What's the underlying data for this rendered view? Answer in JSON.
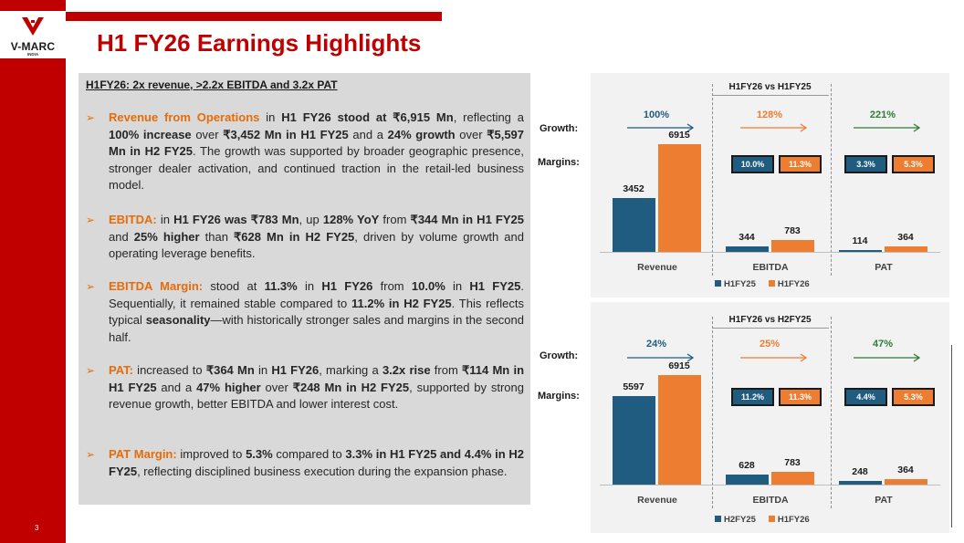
{
  "logo": {
    "name": "V-MARC",
    "sub": "INDIA"
  },
  "page_number": "3",
  "title": "H1 FY26 Earnings Highlights",
  "panel_heading": "H1FY26:  2x revenue, >2.2x EBITDA and 3.2x PAT",
  "bullets": [
    {
      "parts": [
        {
          "t": "Revenue from Operations",
          "s": "o"
        },
        {
          "t": " in ",
          "s": "n"
        },
        {
          "t": "H1 FY26 stood at ₹6,915 Mn",
          "s": "b"
        },
        {
          "t": ", reflecting a ",
          "s": "n"
        },
        {
          "t": "100% increase",
          "s": "b"
        },
        {
          "t": " over ",
          "s": "n"
        },
        {
          "t": "₹3,452 Mn in H1 FY25",
          "s": "b"
        },
        {
          "t": " and a ",
          "s": "n"
        },
        {
          "t": "24% growth",
          "s": "b"
        },
        {
          "t": " over ",
          "s": "n"
        },
        {
          "t": "₹5,597 Mn in H2 FY25",
          "s": "b"
        },
        {
          "t": ". The growth was supported by broader geographic presence, stronger dealer activation, and continued traction in the retail-led business model.",
          "s": "n"
        }
      ]
    },
    {
      "parts": [
        {
          "t": "EBITDA:",
          "s": "o"
        },
        {
          "t": " in ",
          "s": "n"
        },
        {
          "t": "H1 FY26 was ₹783 Mn",
          "s": "b"
        },
        {
          "t": ", up ",
          "s": "n"
        },
        {
          "t": "128% YoY",
          "s": "b"
        },
        {
          "t": " from ",
          "s": "n"
        },
        {
          "t": "₹344 Mn in H1 FY25",
          "s": "b"
        },
        {
          "t": " and ",
          "s": "n"
        },
        {
          "t": "25% higher",
          "s": "b"
        },
        {
          "t": " than ",
          "s": "n"
        },
        {
          "t": "₹628 Mn in H2 FY25",
          "s": "b"
        },
        {
          "t": ", driven by volume growth and operating leverage benefits.",
          "s": "n"
        }
      ]
    },
    {
      "parts": [
        {
          "t": "EBITDA Margin:",
          "s": "o"
        },
        {
          "t": " stood at ",
          "s": "n"
        },
        {
          "t": "11.3%",
          "s": "b"
        },
        {
          "t": " in ",
          "s": "n"
        },
        {
          "t": "H1 FY26",
          "s": "b"
        },
        {
          "t": " from ",
          "s": "n"
        },
        {
          "t": "10.0%",
          "s": "b"
        },
        {
          "t": " in ",
          "s": "n"
        },
        {
          "t": "H1 FY25",
          "s": "b"
        },
        {
          "t": ". Sequentially, it remained stable compared to ",
          "s": "n"
        },
        {
          "t": "11.2% in H2 FY25",
          "s": "b"
        },
        {
          "t": ". This reflects typical ",
          "s": "n"
        },
        {
          "t": "seasonality",
          "s": "b"
        },
        {
          "t": "—with historically stronger sales and margins in the second half.",
          "s": "n"
        }
      ]
    },
    {
      "parts": [
        {
          "t": "PAT:",
          "s": "o"
        },
        {
          "t": " increased to ",
          "s": "n"
        },
        {
          "t": "₹364 Mn",
          "s": "b"
        },
        {
          "t": " in ",
          "s": "n"
        },
        {
          "t": "H1 FY26",
          "s": "b"
        },
        {
          "t": ", marking a ",
          "s": "n"
        },
        {
          "t": "3.2x rise",
          "s": "b"
        },
        {
          "t": " from ",
          "s": "n"
        },
        {
          "t": "₹114 Mn in H1 FY25",
          "s": "b"
        },
        {
          "t": " and a ",
          "s": "n"
        },
        {
          "t": "47% higher",
          "s": "b"
        },
        {
          "t": " over ",
          "s": "n"
        },
        {
          "t": "₹248 Mn in H2 FY25",
          "s": "b"
        },
        {
          "t": ", supported by strong revenue growth, better EBITDA and lower interest cost.",
          "s": "n"
        }
      ]
    },
    {
      "parts": [
        {
          "t": "PAT Margin:",
          "s": "o"
        },
        {
          "t": " improved to ",
          "s": "n"
        },
        {
          "t": "5.3%",
          "s": "b"
        },
        {
          "t": " compared to ",
          "s": "n"
        },
        {
          "t": "3.3% in H1 FY25 and 4.4% in H2 FY25",
          "s": "b"
        },
        {
          "t": ", reflecting disciplined business execution during the expansion phase.",
          "s": "n"
        }
      ]
    }
  ],
  "colors": {
    "red": "#c00000",
    "orange": "#ed7d31",
    "blue": "#1f5c7f",
    "green": "#2e7d32"
  },
  "chart_data": [
    {
      "type": "bar",
      "title": "H1FY26 vs H1FY25",
      "row_labels": {
        "growth": "Growth:",
        "margins": "Margins:"
      },
      "categories": [
        "Revenue",
        "EBITDA",
        "PAT"
      ],
      "series": [
        {
          "name": "H1FY25",
          "values": [
            3452,
            344,
            114
          ]
        },
        {
          "name": "H1FY26",
          "values": [
            6915,
            783,
            364
          ]
        }
      ],
      "growth": [
        "100%",
        "128%",
        "221%"
      ],
      "margins": [
        null,
        [
          "10.0%",
          "11.3%"
        ],
        [
          "3.3%",
          "5.3%"
        ]
      ],
      "ylim": [
        0,
        9500
      ],
      "legend": "bottom"
    },
    {
      "type": "bar",
      "title": "H1FY26 vs H2FY25",
      "row_labels": {
        "growth": "Growth:",
        "margins": "Margins:"
      },
      "categories": [
        "Revenue",
        "EBITDA",
        "PAT"
      ],
      "series": [
        {
          "name": "H2FY25",
          "values": [
            5597,
            628,
            248
          ]
        },
        {
          "name": "H1FY26",
          "values": [
            6915,
            783,
            364
          ]
        }
      ],
      "growth": [
        "24%",
        "25%",
        "47%"
      ],
      "margins": [
        null,
        [
          "11.2%",
          "11.3%"
        ],
        [
          "4.4%",
          "5.3%"
        ]
      ],
      "ylim": [
        0,
        11000
      ],
      "legend": "bottom"
    }
  ]
}
